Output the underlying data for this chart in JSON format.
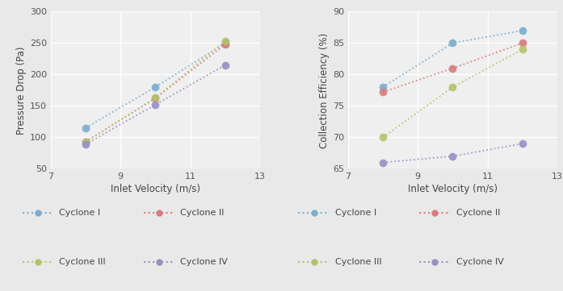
{
  "x_values": [
    8.0,
    10.0,
    12.0
  ],
  "left_chart": {
    "ylabel": "Pressure Drop (Pa)",
    "xlabel": "Inlet Velocity (m/s)",
    "xlim": [
      7,
      13
    ],
    "ylim": [
      50,
      300
    ],
    "yticks": [
      50,
      100,
      150,
      200,
      250,
      300
    ],
    "xticks": [
      7,
      9,
      11,
      13
    ],
    "series": [
      {
        "label": "Cyclone I",
        "color": "#7aadcf",
        "values": [
          115,
          180,
          250
        ]
      },
      {
        "label": "Cyclone II",
        "color": "#d97b7b",
        "values": [
          93,
          162,
          248
        ]
      },
      {
        "label": "Cyclone III",
        "color": "#b5c26a",
        "values": [
          93,
          163,
          253
        ]
      },
      {
        "label": "Cyclone IV",
        "color": "#9b8ec4",
        "values": [
          89,
          152,
          215
        ]
      }
    ]
  },
  "right_chart": {
    "ylabel": "Collection Efficiency (%)",
    "xlabel": "Inlet Velocity (m/s)",
    "xlim": [
      7,
      13
    ],
    "ylim": [
      65,
      90
    ],
    "yticks": [
      65,
      70,
      75,
      80,
      85,
      90
    ],
    "xticks": [
      7,
      9,
      11,
      13
    ],
    "series": [
      {
        "label": "Cyclone I",
        "color": "#7aadcf",
        "values": [
          78.0,
          85.0,
          87.0
        ]
      },
      {
        "label": "Cyclone II",
        "color": "#d97b7b",
        "values": [
          77.2,
          81.0,
          85.0
        ]
      },
      {
        "label": "Cyclone III",
        "color": "#b5c26a",
        "values": [
          70.0,
          78.0,
          84.0
        ]
      },
      {
        "label": "Cyclone IV",
        "color": "#9b8ec4",
        "values": [
          66.0,
          67.0,
          69.0
        ]
      }
    ]
  },
  "legend": [
    {
      "label": "Cyclone I",
      "color": "#7aadcf"
    },
    {
      "label": "Cyclone II",
      "color": "#d97b7b"
    },
    {
      "label": "Cyclone III",
      "color": "#b5c26a"
    },
    {
      "label": "Cyclone IV",
      "color": "#9b8ec4"
    }
  ],
  "bg_color": "#e9e9e9",
  "plot_bg_color": "#efefef"
}
